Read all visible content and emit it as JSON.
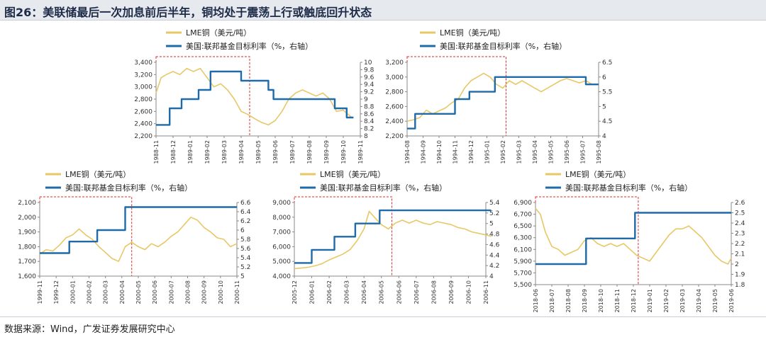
{
  "figure": {
    "title": "图26：美联储最后一次加息前后半年，铜均处于震荡上行或触底回升状态",
    "source": "数据来源：Wind，广发证券发展研究中心",
    "legend_copper": "LME铜（美元/吨）",
    "legend_rate": "美国:联邦基金目标利率（%，右轴）"
  },
  "colors": {
    "copper": "#e8c766",
    "rate": "#1f6aa8",
    "highlight": "#e02a2a",
    "axis": "#888888"
  },
  "chart_data": [
    {
      "type": "line",
      "x_labels": [
        "1988-11",
        "1988-12",
        "1989-01",
        "1989-02",
        "1989-03",
        "1989-04",
        "1989-05",
        "1989-06",
        "1989-07",
        "1989-08",
        "1989-09",
        "1989-10",
        "1989-11"
      ],
      "ylim": [
        2200,
        3400
      ],
      "y_ticks": [
        "2,200",
        "2,400",
        "2,600",
        "2,800",
        "3,000",
        "3,200",
        "3,400"
      ],
      "y2lim": [
        8.0,
        10.0
      ],
      "y2_ticks": [
        "8",
        "8.2",
        "8.4",
        "8.6",
        "8.8",
        "9",
        "9.2",
        "9.4",
        "9.6",
        "9.8",
        "10"
      ],
      "series": [
        {
          "name": "LME铜（美元/吨）",
          "axis": "left",
          "points": [
            [
              0,
              2900
            ],
            [
              0.3,
              3150
            ],
            [
              0.6,
              3200
            ],
            [
              1.0,
              3250
            ],
            [
              1.4,
              3200
            ],
            [
              1.8,
              3300
            ],
            [
              2.2,
              3250
            ],
            [
              2.6,
              3300
            ],
            [
              3.0,
              3150
            ],
            [
              3.4,
              3000
            ],
            [
              3.8,
              3050
            ],
            [
              4.2,
              2950
            ],
            [
              4.6,
              2800
            ],
            [
              5.0,
              2600
            ],
            [
              5.4,
              2550
            ],
            [
              5.8,
              2480
            ],
            [
              6.2,
              2420
            ],
            [
              6.6,
              2380
            ],
            [
              7.0,
              2450
            ],
            [
              7.4,
              2600
            ],
            [
              7.8,
              2800
            ],
            [
              8.2,
              2900
            ],
            [
              8.6,
              2950
            ],
            [
              9.0,
              2900
            ],
            [
              9.4,
              2850
            ],
            [
              9.8,
              2900
            ],
            [
              10.2,
              2800
            ],
            [
              10.6,
              2600
            ],
            [
              11.0,
              2620
            ],
            [
              11.5,
              2500
            ]
          ]
        },
        {
          "name": "美国:联邦基金目标利率（%，右轴）",
          "axis": "right",
          "points": [
            [
              0,
              8.3
            ],
            [
              0.8,
              8.3
            ],
            [
              0.8,
              8.75
            ],
            [
              1.5,
              8.75
            ],
            [
              1.5,
              9.0
            ],
            [
              2.5,
              9.0
            ],
            [
              2.5,
              9.25
            ],
            [
              3.2,
              9.25
            ],
            [
              3.2,
              9.75
            ],
            [
              5.0,
              9.75
            ],
            [
              5.0,
              9.5
            ],
            [
              6.6,
              9.5
            ],
            [
              6.6,
              9.25
            ],
            [
              6.9,
              9.25
            ],
            [
              6.9,
              9.0
            ],
            [
              8.2,
              9.0
            ],
            [
              8.2,
              9.0
            ],
            [
              10.5,
              9.0
            ],
            [
              10.5,
              8.75
            ],
            [
              11.2,
              8.75
            ],
            [
              11.2,
              8.5
            ],
            [
              11.6,
              8.5
            ]
          ]
        }
      ],
      "highlight": [
        0,
        5.5
      ]
    },
    {
      "type": "line",
      "x_labels": [
        "1994-08",
        "1994-09",
        "1994-10",
        "1994-11",
        "1994-12",
        "1995-01",
        "1995-02",
        "1995-03",
        "1995-04",
        "1995-05",
        "1995-06",
        "1995-07",
        "1995-08"
      ],
      "ylim": [
        2200,
        3200
      ],
      "y_ticks": [
        "2,200",
        "2,400",
        "2,600",
        "2,800",
        "3,000",
        "3,200"
      ],
      "y2lim": [
        4.0,
        6.5
      ],
      "y2_ticks": [
        "4",
        "4.5",
        "5",
        "5.5",
        "6",
        "6.5"
      ],
      "series": [
        {
          "name": "LME铜（美元/吨）",
          "axis": "left",
          "points": [
            [
              0,
              2400
            ],
            [
              0.4,
              2420
            ],
            [
              0.8,
              2450
            ],
            [
              1.2,
              2550
            ],
            [
              1.6,
              2500
            ],
            [
              2.0,
              2540
            ],
            [
              2.4,
              2580
            ],
            [
              2.8,
              2650
            ],
            [
              3.2,
              2700
            ],
            [
              3.6,
              2850
            ],
            [
              4.0,
              2950
            ],
            [
              4.4,
              3000
            ],
            [
              4.8,
              3050
            ],
            [
              5.2,
              3000
            ],
            [
              5.6,
              2900
            ],
            [
              6.0,
              2850
            ],
            [
              6.4,
              2950
            ],
            [
              6.8,
              2900
            ],
            [
              7.2,
              2950
            ],
            [
              7.6,
              2900
            ],
            [
              8.0,
              2850
            ],
            [
              8.4,
              2800
            ],
            [
              8.8,
              2850
            ],
            [
              9.2,
              2900
            ],
            [
              9.6,
              2950
            ],
            [
              10.0,
              2980
            ],
            [
              10.4,
              2950
            ],
            [
              10.8,
              2920
            ],
            [
              11.2,
              2950
            ],
            [
              11.6,
              2900
            ],
            [
              12.0,
              2900
            ]
          ]
        },
        {
          "name": "美国:联邦基金目标利率（%，右轴）",
          "axis": "right",
          "points": [
            [
              0,
              4.25
            ],
            [
              0.5,
              4.25
            ],
            [
              0.5,
              4.75
            ],
            [
              3.0,
              4.75
            ],
            [
              3.0,
              5.25
            ],
            [
              3.9,
              5.25
            ],
            [
              3.9,
              5.5
            ],
            [
              5.5,
              5.5
            ],
            [
              5.5,
              6.0
            ],
            [
              11.2,
              6.0
            ],
            [
              11.2,
              5.75
            ],
            [
              12.0,
              5.75
            ]
          ]
        }
      ],
      "highlight": [
        0,
        6.2
      ]
    },
    {
      "type": "line",
      "x_labels": [
        "1999-11",
        "1999-12",
        "2000-01",
        "2000-02",
        "2000-03",
        "2000-04",
        "2000-05",
        "2000-06",
        "2000-07",
        "2000-08",
        "2000-09",
        "2000-10",
        "2000-11"
      ],
      "ylim": [
        1600,
        2100
      ],
      "y_ticks": [
        "1,600",
        "1,700",
        "1,800",
        "1,900",
        "2,000",
        "2,100"
      ],
      "y2lim": [
        5.0,
        6.6
      ],
      "y2_ticks": [
        "5",
        "5.2",
        "5.4",
        "5.6",
        "5.8",
        "6",
        "6.2",
        "6.4",
        "6.6"
      ],
      "series": [
        {
          "name": "LME铜（美元/吨）",
          "axis": "left",
          "points": [
            [
              0,
              1750
            ],
            [
              0.4,
              1780
            ],
            [
              0.8,
              1770
            ],
            [
              1.2,
              1810
            ],
            [
              1.6,
              1860
            ],
            [
              2.0,
              1880
            ],
            [
              2.4,
              1920
            ],
            [
              2.8,
              1880
            ],
            [
              3.2,
              1850
            ],
            [
              3.6,
              1800
            ],
            [
              4.0,
              1760
            ],
            [
              4.4,
              1720
            ],
            [
              4.8,
              1700
            ],
            [
              5.2,
              1800
            ],
            [
              5.6,
              1830
            ],
            [
              6.0,
              1800
            ],
            [
              6.4,
              1780
            ],
            [
              6.8,
              1820
            ],
            [
              7.2,
              1800
            ],
            [
              7.6,
              1830
            ],
            [
              8.0,
              1870
            ],
            [
              8.4,
              1900
            ],
            [
              8.8,
              1950
            ],
            [
              9.2,
              2000
            ],
            [
              9.6,
              1980
            ],
            [
              10.0,
              1930
            ],
            [
              10.4,
              1900
            ],
            [
              10.8,
              1860
            ],
            [
              11.2,
              1850
            ],
            [
              11.6,
              1800
            ],
            [
              12.0,
              1820
            ]
          ]
        },
        {
          "name": "美国:联邦基金目标利率（%，右轴）",
          "axis": "right",
          "points": [
            [
              0,
              5.5
            ],
            [
              1.8,
              5.5
            ],
            [
              1.8,
              5.75
            ],
            [
              3.5,
              5.75
            ],
            [
              3.5,
              6.0
            ],
            [
              5.2,
              6.0
            ],
            [
              5.2,
              6.5
            ],
            [
              12.0,
              6.5
            ]
          ]
        }
      ],
      "highlight": [
        0,
        5.6
      ]
    },
    {
      "type": "line",
      "x_labels": [
        "2005-12",
        "2006-01",
        "2006-02",
        "2006-03",
        "2006-04",
        "2006-05",
        "2006-06",
        "2006-07",
        "2006-08",
        "2006-09",
        "2006-10",
        "2006-11"
      ],
      "ylim": [
        4000,
        9000
      ],
      "y_ticks": [
        "4,000",
        "5,000",
        "6,000",
        "7,000",
        "8,000",
        "9,000"
      ],
      "y2lim": [
        4.0,
        5.4
      ],
      "y2_ticks": [
        "4",
        "4.2",
        "4.4",
        "4.6",
        "4.8",
        "5",
        "5.2",
        "5.4"
      ],
      "series": [
        {
          "name": "LME铜（美元/吨）",
          "axis": "left",
          "points": [
            [
              0,
              4500
            ],
            [
              0.4,
              4550
            ],
            [
              0.8,
              4600
            ],
            [
              1.2,
              4700
            ],
            [
              1.6,
              4850
            ],
            [
              2.0,
              5100
            ],
            [
              2.4,
              5300
            ],
            [
              2.8,
              5500
            ],
            [
              3.2,
              5800
            ],
            [
              3.6,
              6400
            ],
            [
              4.0,
              7200
            ],
            [
              4.3,
              8400
            ],
            [
              4.6,
              8000
            ],
            [
              5.0,
              7500
            ],
            [
              5.4,
              7200
            ],
            [
              5.8,
              7600
            ],
            [
              6.2,
              7800
            ],
            [
              6.6,
              7600
            ],
            [
              7.0,
              7800
            ],
            [
              7.4,
              7600
            ],
            [
              7.8,
              7500
            ],
            [
              8.2,
              7700
            ],
            [
              8.6,
              7600
            ],
            [
              9.0,
              7500
            ],
            [
              9.4,
              7300
            ],
            [
              9.8,
              7200
            ],
            [
              10.2,
              7000
            ],
            [
              10.6,
              6900
            ],
            [
              11.0,
              6800
            ],
            [
              11.3,
              6700
            ]
          ]
        },
        {
          "name": "美国:联邦基金目标利率（%，右轴）",
          "axis": "right",
          "points": [
            [
              0,
              4.25
            ],
            [
              1.0,
              4.25
            ],
            [
              1.0,
              4.5
            ],
            [
              2.3,
              4.5
            ],
            [
              2.3,
              4.75
            ],
            [
              3.5,
              4.75
            ],
            [
              3.5,
              5.0
            ],
            [
              4.9,
              5.0
            ],
            [
              4.9,
              5.25
            ],
            [
              11.3,
              5.25
            ]
          ]
        }
      ],
      "highlight": [
        0,
        5.6
      ]
    },
    {
      "type": "line",
      "x_labels": [
        "2018-06",
        "2018-07",
        "2018-08",
        "2018-09",
        "2018-10",
        "2018-11",
        "2018-12",
        "2019-01",
        "2019-02",
        "2019-03",
        "2019-04",
        "2019-05",
        "2019-06"
      ],
      "ylim": [
        5500,
        6900
      ],
      "y_ticks": [
        "5,500",
        "5,700",
        "5,900",
        "6,100",
        "6,300",
        "6,500",
        "6,700",
        "6,900"
      ],
      "y2lim": [
        1.8,
        2.6
      ],
      "y2_ticks": [
        "1.8",
        "1.9",
        "2",
        "2.1",
        "2.2",
        "2.3",
        "2.4",
        "2.5",
        "2.6"
      ],
      "series": [
        {
          "name": "LME铜（美元/吨）",
          "axis": "left",
          "points": [
            [
              0,
              6800
            ],
            [
              0.3,
              6700
            ],
            [
              0.6,
              6400
            ],
            [
              1.0,
              6150
            ],
            [
              1.4,
              6100
            ],
            [
              1.8,
              6000
            ],
            [
              2.2,
              6050
            ],
            [
              2.6,
              6100
            ],
            [
              3.0,
              6250
            ],
            [
              3.4,
              6300
            ],
            [
              3.8,
              6200
            ],
            [
              4.2,
              6150
            ],
            [
              4.6,
              6200
            ],
            [
              5.0,
              6150
            ],
            [
              5.4,
              6200
            ],
            [
              5.8,
              6100
            ],
            [
              6.2,
              6000
            ],
            [
              6.6,
              5950
            ],
            [
              7.0,
              5900
            ],
            [
              7.4,
              6050
            ],
            [
              7.8,
              6200
            ],
            [
              8.2,
              6350
            ],
            [
              8.6,
              6450
            ],
            [
              9.0,
              6450
            ],
            [
              9.4,
              6500
            ],
            [
              9.8,
              6400
            ],
            [
              10.2,
              6300
            ],
            [
              10.6,
              6150
            ],
            [
              11.0,
              6000
            ],
            [
              11.4,
              5900
            ],
            [
              11.8,
              5850
            ],
            [
              12.0,
              5950
            ]
          ]
        },
        {
          "name": "美国:联邦基金目标利率（%，右轴）",
          "axis": "right",
          "points": [
            [
              0,
              2.0
            ],
            [
              3.1,
              2.0
            ],
            [
              3.1,
              2.25
            ],
            [
              6.1,
              2.25
            ],
            [
              6.1,
              2.5
            ],
            [
              12.0,
              2.5
            ]
          ]
        }
      ],
      "highlight": [
        0,
        6.3
      ]
    }
  ]
}
